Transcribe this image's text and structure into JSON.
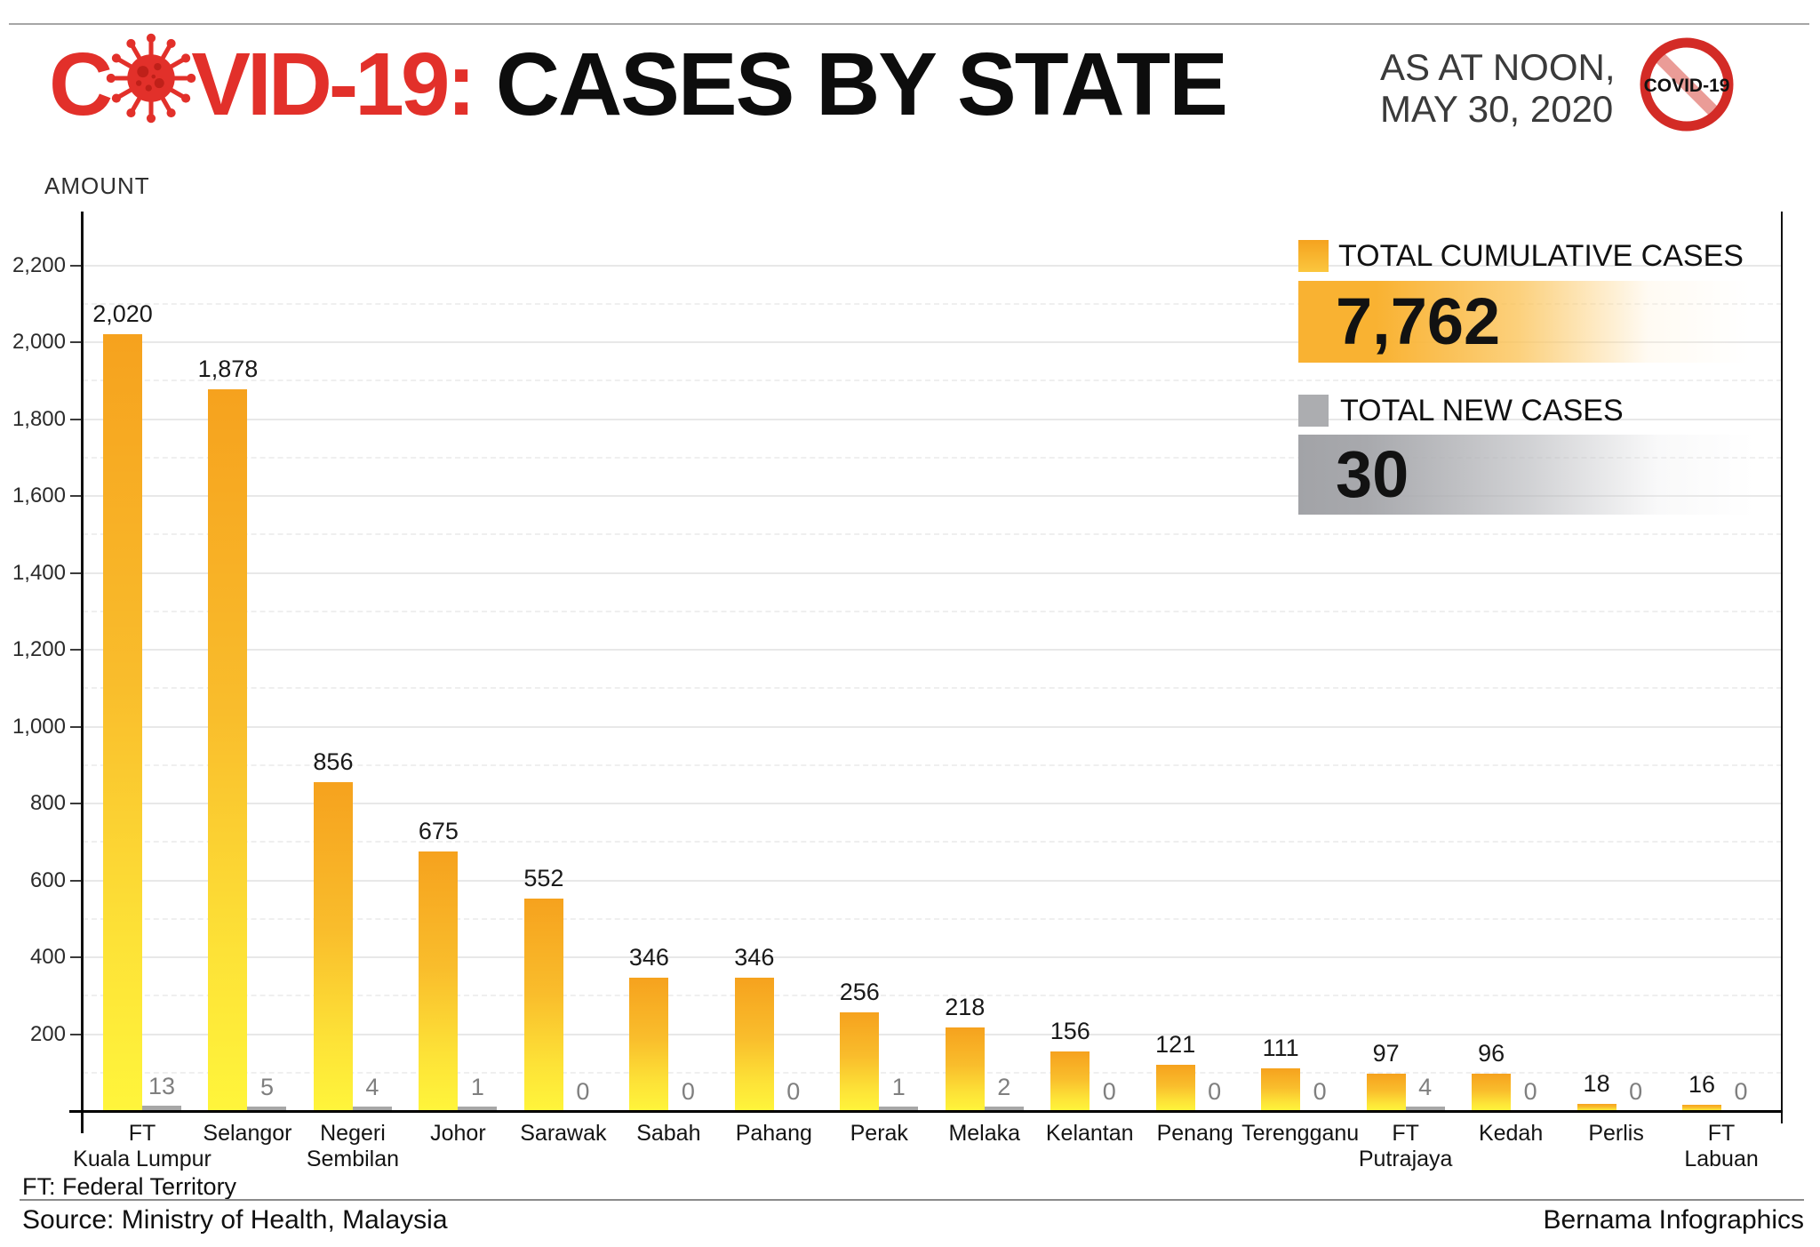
{
  "header": {
    "title_red_c": "C",
    "title_red_rest": "VID-19:",
    "title_black": "CASES BY STATE",
    "date_line1": "AS AT NOON,",
    "date_line2": "MAY 30, 2020",
    "no_covid_badge_text": "COVID-19"
  },
  "legend": {
    "cumulative_label": "TOTAL CUMULATIVE CASES",
    "cumulative_value": "7,762",
    "new_label": "TOTAL NEW CASES",
    "new_value": "30"
  },
  "footer": {
    "note": "FT: Federal Territory",
    "source": "Source: Ministry of Health, Malaysia",
    "credit": "Bernama Infographics"
  },
  "colors": {
    "title_red": "#E2302A",
    "bar_gradient_top": "#F6A21E",
    "bar_gradient_bottom": "#FFF53B",
    "new_cases_gray": "#A7A7A7",
    "legend_orange": "#F9B232",
    "legend_gray": "#A2A3A7"
  },
  "chart_data": {
    "type": "bar",
    "title": "COVID-19: CASES BY STATE",
    "subtitle": "AS AT NOON, MAY 30, 2020",
    "ylabel": "AMOUNT",
    "xlabel": "",
    "ylim": [
      0,
      2300
    ],
    "grid": "solid major gridlines every 200, dashed minor gridlines every 100",
    "legend_position": "top-right",
    "categories": [
      "FT Kuala Lumpur",
      "Selangor",
      "Negeri Sembilan",
      "Johor",
      "Sarawak",
      "Sabah",
      "Pahang",
      "Perak",
      "Melaka",
      "Kelantan",
      "Penang",
      "Terengganu",
      "FT Putrajaya",
      "Kedah",
      "Perlis",
      "FT Labuan"
    ],
    "category_label_lines": [
      [
        "FT",
        "Kuala Lumpur"
      ],
      [
        "Selangor"
      ],
      [
        "Negeri",
        "Sembilan"
      ],
      [
        "Johor"
      ],
      [
        "Sarawak"
      ],
      [
        "Sabah"
      ],
      [
        "Pahang"
      ],
      [
        "Perak"
      ],
      [
        "Melaka"
      ],
      [
        "Kelantan"
      ],
      [
        "Penang"
      ],
      [
        "Terengganu"
      ],
      [
        "FT",
        "Putrajaya"
      ],
      [
        "Kedah"
      ],
      [
        "Perlis"
      ],
      [
        "FT",
        "Labuan"
      ]
    ],
    "series": [
      {
        "name": "TOTAL CUMULATIVE CASES",
        "total": 7762,
        "values": [
          2020,
          1878,
          856,
          675,
          552,
          346,
          346,
          256,
          218,
          156,
          121,
          111,
          97,
          96,
          18,
          16
        ],
        "value_labels": [
          "2,020",
          "1,878",
          "856",
          "675",
          "552",
          "346",
          "346",
          "256",
          "218",
          "156",
          "121",
          "111",
          "97",
          "96",
          "18",
          "16"
        ]
      },
      {
        "name": "TOTAL NEW CASES",
        "total": 30,
        "values": [
          13,
          5,
          4,
          1,
          0,
          0,
          0,
          1,
          2,
          0,
          0,
          0,
          4,
          0,
          0,
          0
        ],
        "value_labels": [
          "13",
          "5",
          "4",
          "1",
          "0",
          "0",
          "0",
          "1",
          "2",
          "0",
          "0",
          "0",
          "4",
          "0",
          "0",
          "0"
        ]
      }
    ],
    "yticks": [
      {
        "value": 200,
        "label": "200"
      },
      {
        "value": 400,
        "label": "400"
      },
      {
        "value": 600,
        "label": "600"
      },
      {
        "value": 800,
        "label": "800"
      },
      {
        "value": 1000,
        "label": "1,000"
      },
      {
        "value": 1200,
        "label": "1,200"
      },
      {
        "value": 1400,
        "label": "1,400"
      },
      {
        "value": 1600,
        "label": "1,600"
      },
      {
        "value": 1800,
        "label": "1,800"
      },
      {
        "value": 2000,
        "label": "2,000"
      },
      {
        "value": 2200,
        "label": "2,200"
      }
    ],
    "yminor": [
      100,
      300,
      500,
      700,
      900,
      1100,
      1300,
      1500,
      1700,
      1900,
      2100
    ]
  }
}
